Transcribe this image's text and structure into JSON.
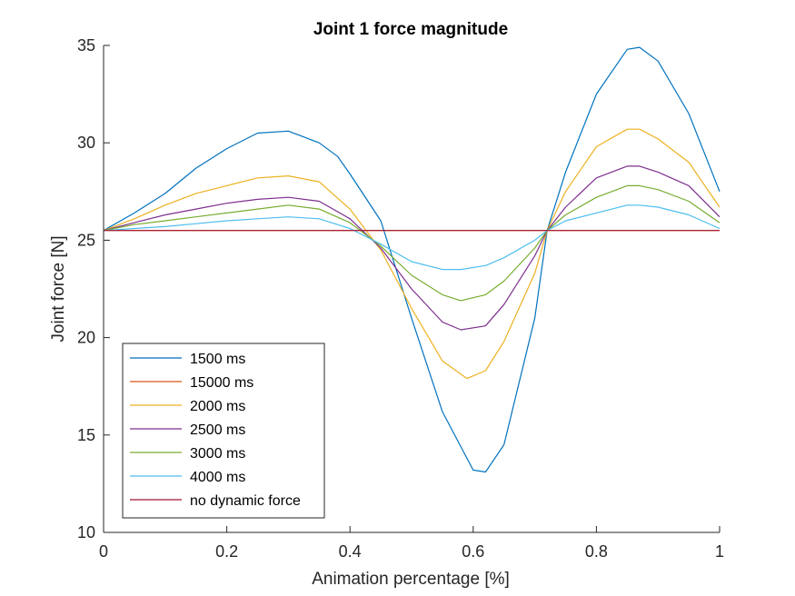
{
  "chart_data": {
    "type": "line",
    "title": "Joint 1 force magnitude",
    "xlabel": "Animation percentage [%]",
    "ylabel": "Joint force [N]",
    "xlim": [
      0,
      1
    ],
    "ylim": [
      10,
      35
    ],
    "xticks": [
      0,
      0.2,
      0.4,
      0.6,
      0.8,
      1
    ],
    "xtick_labels": [
      "0",
      "0.2",
      "0.4",
      "0.6",
      "0.8",
      "1"
    ],
    "yticks": [
      10,
      15,
      20,
      25,
      30,
      35
    ],
    "ytick_labels": [
      "10",
      "15",
      "20",
      "25",
      "30",
      "35"
    ],
    "grid": false,
    "legend_position": "bottom-left",
    "series": [
      {
        "name": "1500 ms",
        "color": "#0072BD",
        "points": [
          [
            0,
            25.5
          ],
          [
            0.05,
            26.4
          ],
          [
            0.1,
            27.4
          ],
          [
            0.15,
            28.7
          ],
          [
            0.2,
            29.7
          ],
          [
            0.25,
            30.5
          ],
          [
            0.3,
            30.6
          ],
          [
            0.35,
            30.0
          ],
          [
            0.38,
            29.3
          ],
          [
            0.4,
            28.4
          ],
          [
            0.45,
            26.0
          ],
          [
            0.5,
            21.0
          ],
          [
            0.55,
            16.2
          ],
          [
            0.6,
            13.2
          ],
          [
            0.62,
            13.1
          ],
          [
            0.65,
            14.5
          ],
          [
            0.7,
            21.0
          ],
          [
            0.72,
            25.5
          ],
          [
            0.75,
            28.5
          ],
          [
            0.8,
            32.5
          ],
          [
            0.85,
            34.8
          ],
          [
            0.87,
            34.9
          ],
          [
            0.9,
            34.2
          ],
          [
            0.95,
            31.5
          ],
          [
            1.0,
            27.5
          ]
        ]
      },
      {
        "name": "15000 ms",
        "color": "#D95319",
        "points": [
          [
            0,
            25.5
          ],
          [
            1.0,
            25.5
          ]
        ]
      },
      {
        "name": "2000 ms",
        "color": "#EDB120",
        "points": [
          [
            0,
            25.5
          ],
          [
            0.05,
            26.1
          ],
          [
            0.1,
            26.8
          ],
          [
            0.15,
            27.4
          ],
          [
            0.2,
            27.8
          ],
          [
            0.25,
            28.2
          ],
          [
            0.3,
            28.3
          ],
          [
            0.35,
            28.0
          ],
          [
            0.4,
            26.6
          ],
          [
            0.45,
            24.5
          ],
          [
            0.5,
            21.5
          ],
          [
            0.55,
            18.8
          ],
          [
            0.59,
            17.9
          ],
          [
            0.62,
            18.3
          ],
          [
            0.65,
            19.8
          ],
          [
            0.7,
            23.3
          ],
          [
            0.72,
            25.5
          ],
          [
            0.75,
            27.5
          ],
          [
            0.8,
            29.8
          ],
          [
            0.85,
            30.7
          ],
          [
            0.87,
            30.7
          ],
          [
            0.9,
            30.2
          ],
          [
            0.95,
            29.0
          ],
          [
            1.0,
            26.7
          ]
        ]
      },
      {
        "name": "2500 ms",
        "color": "#7E2F8E",
        "points": [
          [
            0,
            25.5
          ],
          [
            0.05,
            25.9
          ],
          [
            0.1,
            26.3
          ],
          [
            0.15,
            26.6
          ],
          [
            0.2,
            26.9
          ],
          [
            0.25,
            27.1
          ],
          [
            0.3,
            27.2
          ],
          [
            0.35,
            27.0
          ],
          [
            0.4,
            26.1
          ],
          [
            0.45,
            24.6
          ],
          [
            0.5,
            22.5
          ],
          [
            0.55,
            20.8
          ],
          [
            0.58,
            20.4
          ],
          [
            0.62,
            20.6
          ],
          [
            0.65,
            21.7
          ],
          [
            0.7,
            24.2
          ],
          [
            0.72,
            25.5
          ],
          [
            0.75,
            26.7
          ],
          [
            0.8,
            28.2
          ],
          [
            0.85,
            28.8
          ],
          [
            0.87,
            28.8
          ],
          [
            0.9,
            28.5
          ],
          [
            0.95,
            27.8
          ],
          [
            1.0,
            26.2
          ]
        ]
      },
      {
        "name": "3000 ms",
        "color": "#77AC30",
        "points": [
          [
            0,
            25.5
          ],
          [
            0.05,
            25.8
          ],
          [
            0.1,
            26.0
          ],
          [
            0.15,
            26.2
          ],
          [
            0.2,
            26.4
          ],
          [
            0.25,
            26.6
          ],
          [
            0.3,
            26.8
          ],
          [
            0.35,
            26.6
          ],
          [
            0.4,
            25.9
          ],
          [
            0.45,
            24.7
          ],
          [
            0.5,
            23.2
          ],
          [
            0.55,
            22.2
          ],
          [
            0.58,
            21.9
          ],
          [
            0.62,
            22.2
          ],
          [
            0.65,
            22.9
          ],
          [
            0.7,
            24.6
          ],
          [
            0.72,
            25.5
          ],
          [
            0.75,
            26.3
          ],
          [
            0.8,
            27.2
          ],
          [
            0.85,
            27.8
          ],
          [
            0.87,
            27.8
          ],
          [
            0.9,
            27.6
          ],
          [
            0.95,
            27.0
          ],
          [
            1.0,
            25.9
          ]
        ]
      },
      {
        "name": "4000 ms",
        "color": "#4DBEEE",
        "points": [
          [
            0,
            25.5
          ],
          [
            0.05,
            25.6
          ],
          [
            0.1,
            25.7
          ],
          [
            0.15,
            25.85
          ],
          [
            0.2,
            26.0
          ],
          [
            0.25,
            26.1
          ],
          [
            0.3,
            26.2
          ],
          [
            0.35,
            26.1
          ],
          [
            0.4,
            25.6
          ],
          [
            0.45,
            24.8
          ],
          [
            0.5,
            23.9
          ],
          [
            0.55,
            23.5
          ],
          [
            0.58,
            23.5
          ],
          [
            0.62,
            23.7
          ],
          [
            0.65,
            24.1
          ],
          [
            0.7,
            25.0
          ],
          [
            0.72,
            25.5
          ],
          [
            0.75,
            26.0
          ],
          [
            0.8,
            26.4
          ],
          [
            0.85,
            26.8
          ],
          [
            0.87,
            26.8
          ],
          [
            0.9,
            26.7
          ],
          [
            0.95,
            26.3
          ],
          [
            1.0,
            25.6
          ]
        ]
      },
      {
        "name": "no dynamic force",
        "color": "#A2142F",
        "points": [
          [
            0,
            25.5
          ],
          [
            1.0,
            25.5
          ]
        ]
      }
    ]
  }
}
